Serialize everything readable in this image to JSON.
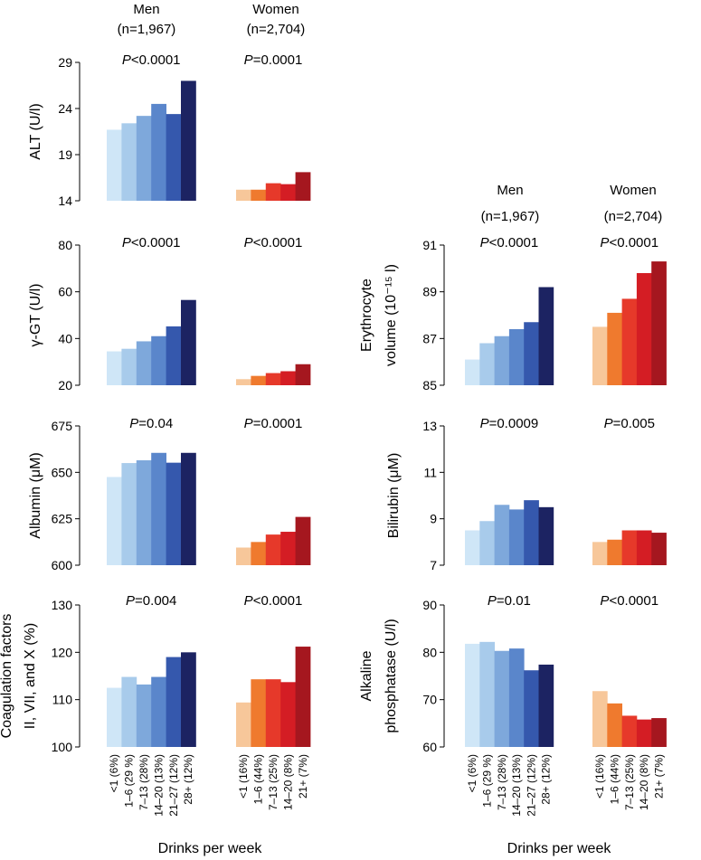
{
  "chart_data": {
    "type": "bar",
    "xlabel": "Drinks per week",
    "men_header": {
      "label": "Men",
      "n": "(n=1,967)"
    },
    "women_header": {
      "label": "Women",
      "n": "(n=2,704)"
    },
    "men_categories": [
      "<1 (6%)",
      "1–6 (29 %)",
      "7–13 (28%)",
      "14–20 (13%)",
      "21–27 (12%)",
      "28+ (12%)"
    ],
    "women_categories": [
      "<1 (16%)",
      "1–6 (44%)",
      "7–13 (25%)",
      "14–20 (8%)",
      "21+ (7%)"
    ],
    "colors": {
      "men": [
        "#cfe6f7",
        "#a8cbeb",
        "#7ea8db",
        "#5a86cb",
        "#3558ad",
        "#1c2362"
      ],
      "women": [
        "#f7c79a",
        "#ef7a2e",
        "#e6392a",
        "#d41d24",
        "#a5171f"
      ]
    },
    "panels": [
      {
        "id": "alt",
        "ylabel": [
          "ALT (U/l)"
        ],
        "ylim": [
          14,
          29
        ],
        "ticks": [
          "14",
          "19",
          "24",
          "29"
        ],
        "men_p": "P<0.0001",
        "women_p": "P=0.0001",
        "men_values": [
          21.7,
          22.4,
          23.2,
          24.5,
          23.4,
          27.0
        ],
        "women_values": [
          15.2,
          15.2,
          15.9,
          15.8,
          17.1
        ]
      },
      {
        "id": "ggt",
        "ylabel": [
          "γ-GT (U/l)"
        ],
        "ylim": [
          20,
          80
        ],
        "ticks": [
          "20",
          "40",
          "60",
          "80"
        ],
        "men_p": "P<0.0001",
        "women_p": "P<0.0001",
        "men_values": [
          34.5,
          35.6,
          38.8,
          41.0,
          45.2,
          56.5
        ],
        "women_values": [
          22.6,
          24.0,
          25.2,
          26.0,
          29.0
        ]
      },
      {
        "id": "albumin",
        "ylabel": [
          "Albumin (μM)"
        ],
        "ylim": [
          600,
          675
        ],
        "ticks": [
          "600",
          "625",
          "650",
          "675"
        ],
        "men_p": "P=0.04",
        "women_p": "P=0.0001",
        "men_values": [
          647.5,
          655.0,
          656.5,
          660.5,
          655.2,
          660.5
        ],
        "women_values": [
          609.5,
          612.5,
          616.5,
          618.0,
          626.0
        ]
      },
      {
        "id": "coag",
        "ylabel": [
          "Coagulation factors",
          "II, VII, and X (%)"
        ],
        "ylim": [
          100,
          130
        ],
        "ticks": [
          "100",
          "110",
          "120",
          "130"
        ],
        "men_p": "P=0.004",
        "women_p": "P<0.0001",
        "men_values": [
          112.5,
          114.8,
          113.2,
          114.8,
          119.0,
          120.0
        ],
        "women_values": [
          109.4,
          114.3,
          114.3,
          113.7,
          121.2
        ]
      },
      {
        "id": "ery",
        "ylabel": [
          "Erythrocyte",
          "volume (10⁻¹⁵ l)"
        ],
        "ylim": [
          85,
          91
        ],
        "ticks": [
          "85",
          "87",
          "89",
          "91"
        ],
        "men_p": "P<0.0001",
        "women_p": "P<0.0001",
        "men_values": [
          86.1,
          86.8,
          87.1,
          87.4,
          87.7,
          89.2
        ],
        "women_values": [
          87.5,
          88.1,
          88.7,
          89.8,
          90.3
        ]
      },
      {
        "id": "bili",
        "ylabel": [
          "Bilirubin (μM)"
        ],
        "ylim": [
          7,
          13
        ],
        "ticks": [
          "7",
          "9",
          "11",
          "13"
        ],
        "men_p": "P=0.0009",
        "women_p": "P=0.005",
        "men_values": [
          8.5,
          8.9,
          9.6,
          9.4,
          9.8,
          9.5
        ],
        "women_values": [
          8.0,
          8.1,
          8.5,
          8.5,
          8.4
        ]
      },
      {
        "id": "alp",
        "ylabel": [
          "Alkaline",
          "phosphatase (U/l)"
        ],
        "ylim": [
          60,
          90
        ],
        "ticks": [
          "60",
          "70",
          "80",
          "90"
        ],
        "men_p": "P=0.01",
        "women_p": "P<0.0001",
        "men_values": [
          81.8,
          82.2,
          80.3,
          80.8,
          76.2,
          77.4
        ],
        "women_values": [
          71.8,
          69.2,
          66.6,
          65.8,
          66.1
        ]
      }
    ]
  }
}
